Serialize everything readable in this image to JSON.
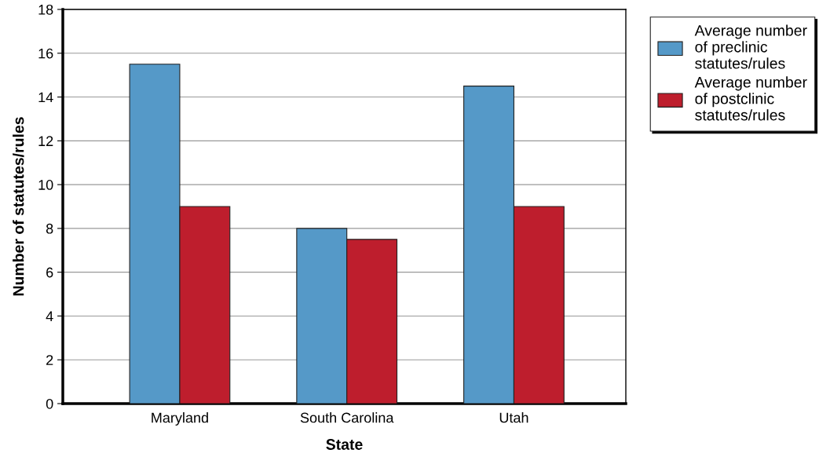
{
  "chart_data": {
    "type": "bar",
    "xlabel": "State",
    "ylabel": "Number of statutes/rules",
    "categories": [
      "Maryland",
      "South Carolina",
      "Utah"
    ],
    "series": [
      {
        "name": "Average number\nof preclinic\nstatutes/rules",
        "color": "#5599c8",
        "values": [
          15.5,
          8,
          14.5
        ]
      },
      {
        "name": "Average number\nof postclinic\nstatutes/rules",
        "color": "#be1e2d",
        "values": [
          9,
          7.5,
          9
        ]
      }
    ],
    "ylim": [
      0,
      18
    ],
    "yticks": [
      0,
      2,
      4,
      6,
      8,
      10,
      12,
      14,
      16,
      18
    ],
    "grid": "y",
    "legend": "top right"
  }
}
